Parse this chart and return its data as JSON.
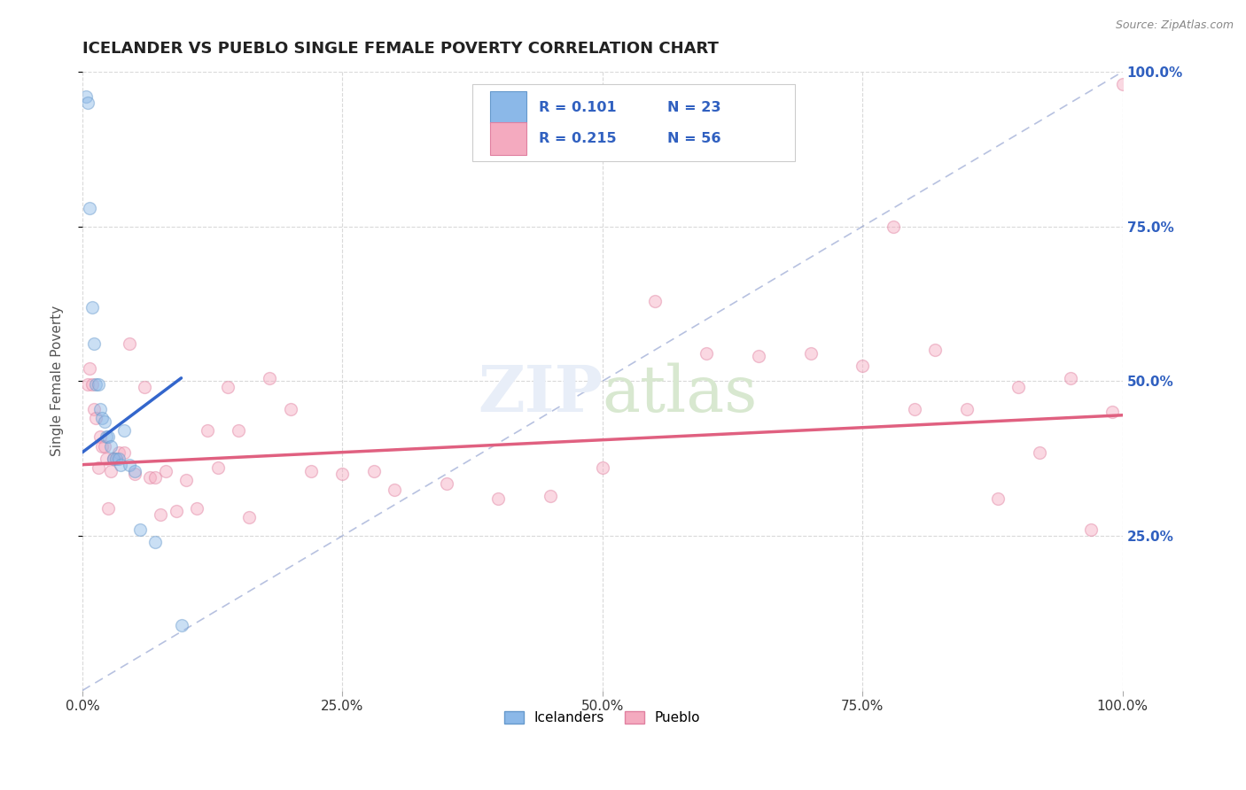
{
  "title": "ICELANDER VS PUEBLO SINGLE FEMALE POVERTY CORRELATION CHART",
  "source": "Source: ZipAtlas.com",
  "ylabel": "Single Female Poverty",
  "xlim": [
    0.0,
    1.0
  ],
  "ylim": [
    0.0,
    1.0
  ],
  "xticks": [
    0.0,
    0.25,
    0.5,
    0.75,
    1.0
  ],
  "xtick_labels": [
    "0.0%",
    "25.0%",
    "50.0%",
    "75.0%",
    "100.0%"
  ],
  "yticks": [
    0.25,
    0.5,
    0.75,
    1.0
  ],
  "right_ytick_labels": [
    "25.0%",
    "50.0%",
    "75.0%",
    "100.0%"
  ],
  "icelander_color": "#8BB8E8",
  "pueblo_color": "#F4AABF",
  "icelander_edge_color": "#6699CC",
  "pueblo_edge_color": "#E080A0",
  "icelander_R": 0.101,
  "icelander_N": 23,
  "pueblo_R": 0.215,
  "pueblo_N": 56,
  "legend_label_1": "Icelanders",
  "legend_label_2": "Pueblo",
  "icelander_scatter_x": [
    0.003,
    0.005,
    0.007,
    0.009,
    0.011,
    0.013,
    0.015,
    0.017,
    0.019,
    0.021,
    0.023,
    0.025,
    0.027,
    0.03,
    0.032,
    0.035,
    0.037,
    0.04,
    0.045,
    0.05,
    0.055,
    0.07,
    0.095
  ],
  "icelander_scatter_y": [
    0.96,
    0.95,
    0.78,
    0.62,
    0.56,
    0.495,
    0.495,
    0.455,
    0.44,
    0.435,
    0.41,
    0.41,
    0.395,
    0.375,
    0.375,
    0.375,
    0.365,
    0.42,
    0.365,
    0.355,
    0.26,
    0.24,
    0.105
  ],
  "pueblo_scatter_x": [
    0.005,
    0.007,
    0.009,
    0.011,
    0.013,
    0.015,
    0.017,
    0.019,
    0.021,
    0.023,
    0.025,
    0.027,
    0.03,
    0.035,
    0.04,
    0.045,
    0.05,
    0.06,
    0.065,
    0.07,
    0.075,
    0.08,
    0.09,
    0.1,
    0.11,
    0.12,
    0.13,
    0.14,
    0.15,
    0.16,
    0.18,
    0.2,
    0.22,
    0.25,
    0.28,
    0.3,
    0.35,
    0.4,
    0.45,
    0.5,
    0.55,
    0.6,
    0.65,
    0.7,
    0.75,
    0.8,
    0.85,
    0.9,
    0.92,
    0.95,
    0.97,
    0.99,
    1.0,
    0.88,
    0.82,
    0.78
  ],
  "pueblo_scatter_y": [
    0.495,
    0.52,
    0.495,
    0.455,
    0.44,
    0.36,
    0.41,
    0.395,
    0.395,
    0.375,
    0.295,
    0.355,
    0.375,
    0.385,
    0.385,
    0.56,
    0.35,
    0.49,
    0.345,
    0.345,
    0.285,
    0.355,
    0.29,
    0.34,
    0.295,
    0.42,
    0.36,
    0.49,
    0.42,
    0.28,
    0.505,
    0.455,
    0.355,
    0.35,
    0.355,
    0.325,
    0.335,
    0.31,
    0.315,
    0.36,
    0.63,
    0.545,
    0.54,
    0.545,
    0.525,
    0.455,
    0.455,
    0.49,
    0.385,
    0.505,
    0.26,
    0.45,
    0.98,
    0.31,
    0.55,
    0.75
  ],
  "icelander_line_x": [
    0.0,
    0.095
  ],
  "icelander_line_y": [
    0.385,
    0.505
  ],
  "pueblo_line_x": [
    0.0,
    1.0
  ],
  "pueblo_line_y": [
    0.365,
    0.445
  ],
  "diagonal_line_x": [
    0.0,
    1.0
  ],
  "diagonal_line_y": [
    0.0,
    1.0
  ],
  "background_color": "#ffffff",
  "grid_color": "#d0d0d0",
  "title_color": "#222222",
  "right_axis_color": "#3060C0",
  "marker_size": 100,
  "marker_alpha": 0.45,
  "marker_linewidth": 1.0
}
